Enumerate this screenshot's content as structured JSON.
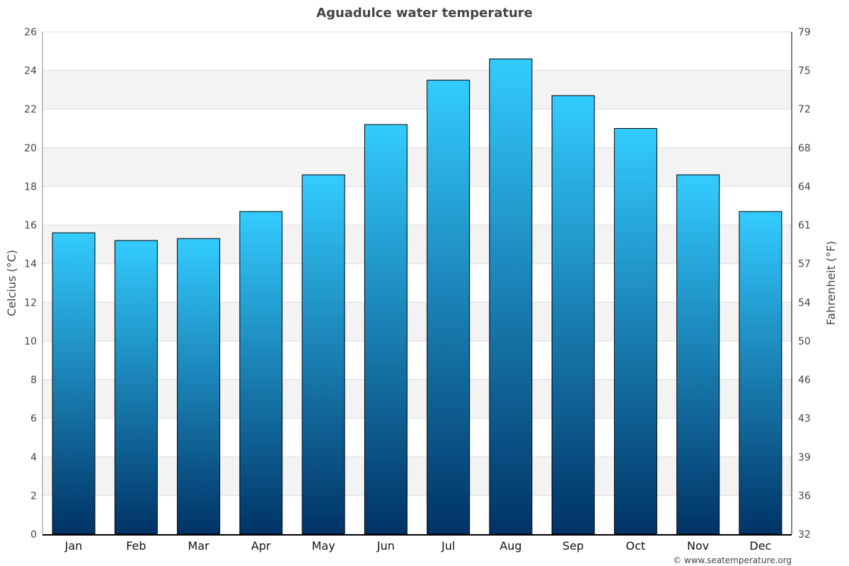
{
  "chart_data": {
    "type": "bar",
    "title": "Aguadulce water temperature",
    "ylabel": "Celcius (°C)",
    "ylabel_right": "Fahrenheit (°F)",
    "categories": [
      "Jan",
      "Feb",
      "Mar",
      "Apr",
      "May",
      "Jun",
      "Jul",
      "Aug",
      "Sep",
      "Oct",
      "Nov",
      "Dec"
    ],
    "values": [
      15.6,
      15.2,
      15.3,
      16.7,
      18.6,
      21.2,
      23.5,
      24.6,
      22.7,
      21.0,
      18.6,
      16.7
    ],
    "ylim": [
      0,
      26
    ],
    "yticks": [
      "0",
      "2",
      "4",
      "6",
      "8",
      "10",
      "12",
      "14",
      "16",
      "18",
      "20",
      "22",
      "24",
      "26"
    ],
    "yticks_right": [
      "32",
      "36",
      "39",
      "43",
      "46",
      "50",
      "54",
      "57",
      "61",
      "64",
      "68",
      "72",
      "75",
      "79"
    ],
    "grid": true,
    "bar_gradient": {
      "top": "#33ccff",
      "bottom": "#003366"
    },
    "band_color": "#f3f3f3",
    "credit": "© www.seatemperature.org"
  }
}
